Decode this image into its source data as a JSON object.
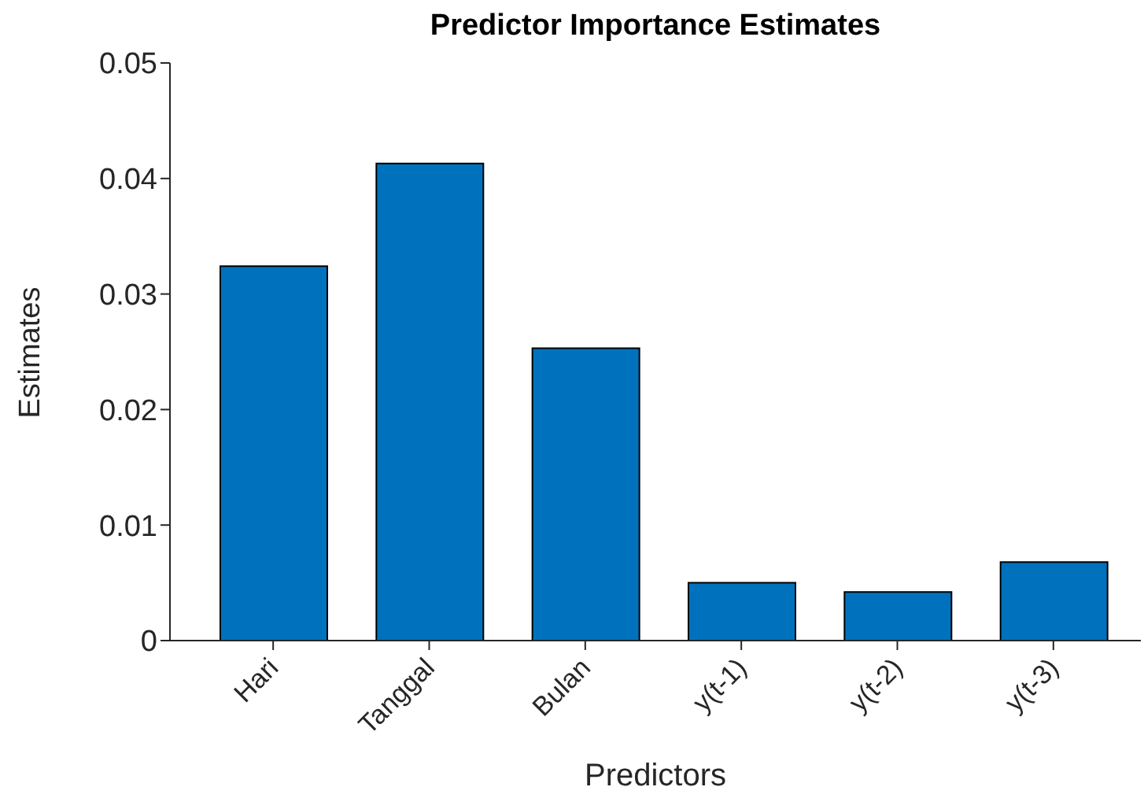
{
  "chart_data": {
    "type": "bar",
    "title": "Predictor Importance Estimates",
    "xlabel": "Predictors",
    "ylabel": "Estimates",
    "categories": [
      "Hari",
      "Tanggal",
      "Bulan",
      "y(t-1)",
      "y(t-2)",
      "y(t-3)"
    ],
    "values": [
      0.0324,
      0.0413,
      0.0253,
      0.005,
      0.0042,
      0.0068
    ],
    "color": "#0072bd",
    "ylim": [
      0,
      0.05
    ],
    "yticks": [
      0,
      0.01,
      0.02,
      0.03,
      0.04,
      0.05
    ],
    "grid": false
  }
}
